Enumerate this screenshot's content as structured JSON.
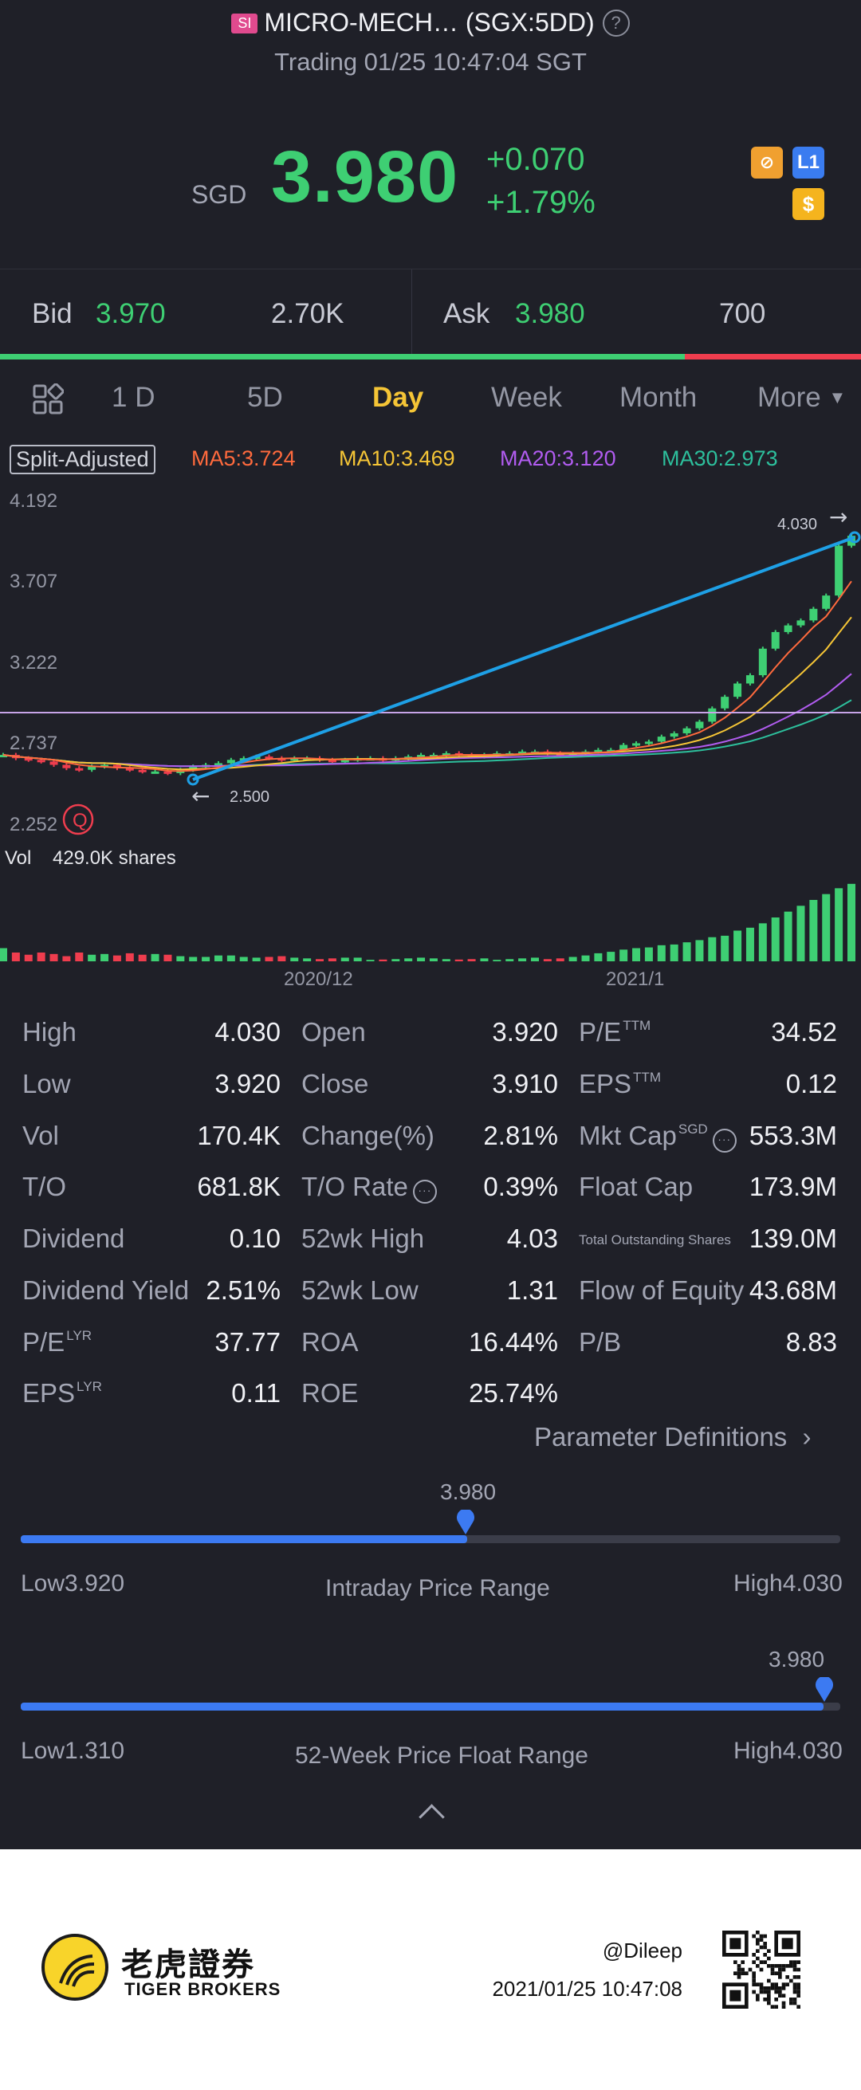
{
  "header": {
    "market_badge": "SI",
    "title": "MICRO-MECH… (SGX:5DD)",
    "status": "Trading 01/25 10:47:04 SGT",
    "currency": "SGD",
    "price": "3.980",
    "change": "+0.070",
    "change_pct": "+1.79%",
    "badge_level": "L1",
    "badge_dollar": "$"
  },
  "bid_ask": {
    "bid_label": "Bid",
    "bid_price": "3.970",
    "bid_size": "2.70K",
    "ask_label": "Ask",
    "ask_price": "3.980",
    "ask_size": "700",
    "bid_ratio": 0.795
  },
  "tabs": [
    "1 D",
    "5D",
    "Day",
    "Week",
    "Month",
    "More"
  ],
  "active_tab": "Day",
  "ma": {
    "split_adjusted": "Split-Adjusted",
    "ma5": "MA5:3.724",
    "ma10": "MA10:3.469",
    "ma20": "MA20:3.120",
    "ma30": "MA30:2.973"
  },
  "chart_data": {
    "type": "candlestick",
    "y_ticks": [
      "4.192",
      "3.707",
      "3.222",
      "2.737",
      "2.252"
    ],
    "ylim": [
      2.252,
      4.192
    ],
    "high_marker": "4.030",
    "low_marker": "2.500",
    "volume_label": "Vol",
    "volume_value": "429.0K shares",
    "x_ticks": [
      "2020/12",
      "2021/1"
    ],
    "colors": {
      "up": "#3ecf73",
      "down": "#ef3d4e",
      "ma5": "#ff6a3d",
      "ma10": "#f5c536",
      "ma20": "#b15cf0",
      "ma30": "#2dbf9c",
      "trend": "#1ea0e6",
      "hline": "#c7a4e8"
    },
    "closes": [
      2.66,
      2.64,
      2.63,
      2.62,
      2.6,
      2.58,
      2.57,
      2.59,
      2.6,
      2.58,
      2.57,
      2.56,
      2.56,
      2.55,
      2.57,
      2.59,
      2.6,
      2.61,
      2.63,
      2.64,
      2.65,
      2.64,
      2.63,
      2.64,
      2.64,
      2.63,
      2.62,
      2.63,
      2.64,
      2.64,
      2.63,
      2.64,
      2.65,
      2.66,
      2.66,
      2.67,
      2.66,
      2.65,
      2.66,
      2.67,
      2.67,
      2.68,
      2.68,
      2.67,
      2.66,
      2.67,
      2.68,
      2.69,
      2.69,
      2.72,
      2.73,
      2.74,
      2.77,
      2.79,
      2.82,
      2.86,
      2.94,
      3.01,
      3.09,
      3.14,
      3.3,
      3.4,
      3.44,
      3.47,
      3.54,
      3.62,
      3.92,
      3.98
    ],
    "volumes": [
      90,
      60,
      45,
      60,
      50,
      35,
      60,
      45,
      50,
      40,
      55,
      45,
      50,
      45,
      35,
      30,
      30,
      40,
      40,
      30,
      25,
      30,
      35,
      25,
      20,
      15,
      20,
      25,
      25,
      10,
      12,
      15,
      20,
      25,
      20,
      15,
      12,
      15,
      20,
      10,
      15,
      20,
      25,
      15,
      20,
      30,
      40,
      55,
      65,
      80,
      90,
      95,
      110,
      115,
      130,
      145,
      165,
      175,
      210,
      230,
      260,
      300,
      340,
      380,
      420,
      460,
      500,
      530
    ]
  },
  "stats": [
    {
      "label": "High",
      "value": "4.030"
    },
    {
      "label": "Open",
      "value": "3.920"
    },
    {
      "label": "P/E",
      "sup": "TTM",
      "value": "34.52"
    },
    {
      "label": "Low",
      "value": "3.920"
    },
    {
      "label": "Close",
      "value": "3.910"
    },
    {
      "label": "EPS",
      "sup": "TTM",
      "value": "0.12"
    },
    {
      "label": "Vol",
      "value": "170.4K"
    },
    {
      "label": "Change(%)",
      "value": "2.81%"
    },
    {
      "label": "Mkt Cap",
      "sup": "SGD",
      "value": "553.3M"
    },
    {
      "label": "T/O",
      "value": "681.8K"
    },
    {
      "label": "T/O Rate",
      "value": "0.39%"
    },
    {
      "label": "Float Cap",
      "value": "173.9M"
    },
    {
      "label": "Dividend",
      "value": "0.10"
    },
    {
      "label": "52wk High",
      "value": "4.03"
    },
    {
      "label": "Total Outstanding Shares",
      "value": "139.0M"
    },
    {
      "label": "Dividend Yield",
      "value": "2.51%"
    },
    {
      "label": "52wk Low",
      "value": "1.31"
    },
    {
      "label": "Flow of Equity",
      "value": "43.68M"
    },
    {
      "label": "P/E",
      "sup": "LYR",
      "value": "37.77"
    },
    {
      "label": "ROA",
      "value": "16.44%"
    },
    {
      "label": "P/B",
      "value": "8.83"
    },
    {
      "label": "EPS",
      "sup": "LYR",
      "value": "0.11"
    },
    {
      "label": "ROE",
      "value": "25.74%"
    }
  ],
  "parameter_definitions": "Parameter Definitions",
  "intraday_range": {
    "title": "Intraday Price Range",
    "low_label": "Low",
    "low": "3.920",
    "high_label": "High",
    "high": "4.030",
    "current": "3.980",
    "fraction": 0.545
  },
  "week52_range": {
    "title": "52-Week Price Float Range",
    "low_label": "Low",
    "low": "1.310",
    "high_label": "High",
    "high": "4.030",
    "current": "3.980",
    "fraction": 0.98
  },
  "footer": {
    "brand_cn": "老虎證券",
    "brand_en": "TIGER BROKERS",
    "username": "@Dileep",
    "timestamp": "2021/01/25 10:47:08"
  }
}
